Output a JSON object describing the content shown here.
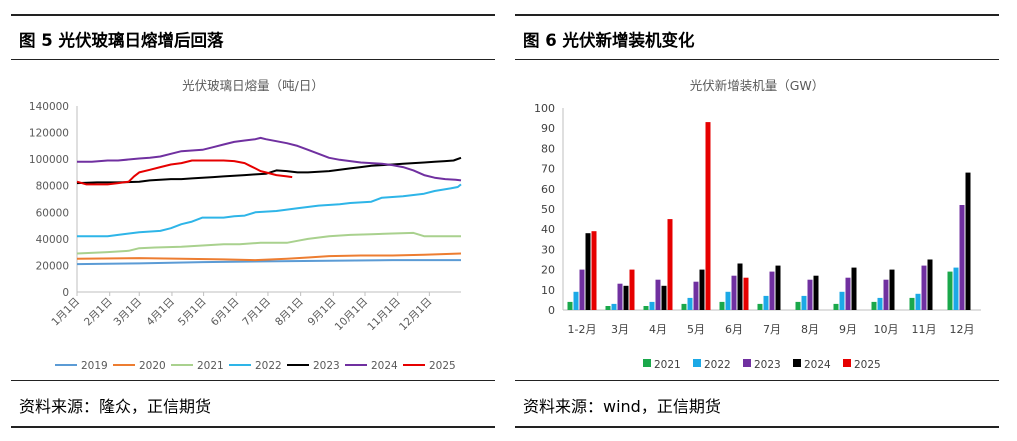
{
  "figures": [
    {
      "title": "图 5  光伏玻璃日熔增后回落",
      "source": "资料来源：隆众，正信期货"
    },
    {
      "title": "图 6    光伏新增装机变化",
      "source": "资料来源：wind，正信期货"
    }
  ],
  "chart_data": [
    {
      "type": "line",
      "title": "光伏玻璃日熔量（吨/日）",
      "ylim": [
        0,
        140000
      ],
      "yticks": [
        "0",
        "20000",
        "40000",
        "60000",
        "80000",
        "100000",
        "120000",
        "140000"
      ],
      "x_tick_labels": [
        "1月1日",
        "2月1日",
        "3月1日",
        "4月1日",
        "5月1日",
        "6月1日",
        "7月1日",
        "8月1日",
        "9月1日",
        "10月1日",
        "11月1日",
        "12月1日"
      ],
      "x_range_days": [
        1,
        365
      ],
      "grid": false,
      "legend_position": "bottom",
      "series": [
        {
          "name": "2019",
          "color": "#5B9BD5",
          "points": [
            [
              1,
              21000
            ],
            [
              60,
              21500
            ],
            [
              120,
              22500
            ],
            [
              180,
              23000
            ],
            [
              240,
              23500
            ],
            [
              300,
              24000
            ],
            [
              365,
              24000
            ]
          ]
        },
        {
          "name": "2020",
          "color": "#ED7D31",
          "points": [
            [
              1,
              25000
            ],
            [
              60,
              25500
            ],
            [
              100,
              25000
            ],
            [
              140,
              24500
            ],
            [
              170,
              24000
            ],
            [
              200,
              25000
            ],
            [
              220,
              26000
            ],
            [
              240,
              27000
            ],
            [
              270,
              27500
            ],
            [
              300,
              27500
            ],
            [
              330,
              28000
            ],
            [
              365,
              29000
            ]
          ]
        },
        {
          "name": "2021",
          "color": "#A9D18E",
          "points": [
            [
              1,
              29000
            ],
            [
              30,
              30000
            ],
            [
              50,
              31000
            ],
            [
              60,
              33000
            ],
            [
              75,
              33500
            ],
            [
              100,
              34000
            ],
            [
              120,
              35000
            ],
            [
              140,
              36000
            ],
            [
              155,
              36000
            ],
            [
              175,
              37000
            ],
            [
              200,
              37000
            ],
            [
              210,
              38500
            ],
            [
              220,
              40000
            ],
            [
              240,
              42000
            ],
            [
              260,
              43000
            ],
            [
              280,
              43500
            ],
            [
              300,
              44000
            ],
            [
              320,
              44500
            ],
            [
              330,
              42000
            ],
            [
              365,
              42000
            ]
          ]
        },
        {
          "name": "2022",
          "color": "#2EB5E8",
          "points": [
            [
              1,
              42000
            ],
            [
              30,
              42000
            ],
            [
              40,
              43000
            ],
            [
              60,
              45000
            ],
            [
              80,
              46000
            ],
            [
              90,
              48000
            ],
            [
              100,
              51000
            ],
            [
              110,
              53000
            ],
            [
              120,
              56000
            ],
            [
              140,
              56000
            ],
            [
              150,
              57000
            ],
            [
              160,
              57500
            ],
            [
              170,
              60000
            ],
            [
              190,
              61000
            ],
            [
              210,
              63000
            ],
            [
              230,
              65000
            ],
            [
              250,
              66000
            ],
            [
              260,
              67000
            ],
            [
              280,
              68000
            ],
            [
              290,
              71000
            ],
            [
              310,
              72000
            ],
            [
              330,
              74000
            ],
            [
              340,
              76000
            ],
            [
              355,
              78000
            ],
            [
              362,
              79000
            ],
            [
              365,
              81000
            ]
          ]
        },
        {
          "name": "2023",
          "color": "#000000",
          "points": [
            [
              1,
              82000
            ],
            [
              20,
              82500
            ],
            [
              40,
              82500
            ],
            [
              60,
              83000
            ],
            [
              70,
              84000
            ],
            [
              80,
              84500
            ],
            [
              90,
              85000
            ],
            [
              100,
              85000
            ],
            [
              110,
              85500
            ],
            [
              120,
              86000
            ],
            [
              130,
              86500
            ],
            [
              140,
              87000
            ],
            [
              150,
              87500
            ],
            [
              160,
              88000
            ],
            [
              170,
              88500
            ],
            [
              180,
              89000
            ],
            [
              190,
              91500
            ],
            [
              200,
              91000
            ],
            [
              210,
              90000
            ],
            [
              220,
              90000
            ],
            [
              230,
              90500
            ],
            [
              240,
              91000
            ],
            [
              250,
              92000
            ],
            [
              260,
              93000
            ],
            [
              270,
              94000
            ],
            [
              280,
              95000
            ],
            [
              290,
              95500
            ],
            [
              300,
              96000
            ],
            [
              310,
              96500
            ],
            [
              320,
              97000
            ],
            [
              330,
              97500
            ],
            [
              340,
              98000
            ],
            [
              350,
              98500
            ],
            [
              358,
              99000
            ],
            [
              365,
              101000
            ]
          ]
        },
        {
          "name": "2024",
          "color": "#7030A0",
          "points": [
            [
              1,
              98000
            ],
            [
              15,
              98000
            ],
            [
              30,
              99000
            ],
            [
              40,
              99000
            ],
            [
              60,
              100500
            ],
            [
              70,
              101000
            ],
            [
              80,
              102000
            ],
            [
              90,
              104000
            ],
            [
              100,
              106000
            ],
            [
              110,
              106500
            ],
            [
              120,
              107000
            ],
            [
              130,
              109000
            ],
            [
              140,
              111000
            ],
            [
              150,
              113000
            ],
            [
              160,
              114000
            ],
            [
              170,
              115000
            ],
            [
              175,
              116000
            ],
            [
              180,
              115000
            ],
            [
              190,
              113500
            ],
            [
              200,
              112000
            ],
            [
              210,
              110000
            ],
            [
              220,
              107000
            ],
            [
              230,
              104000
            ],
            [
              240,
              101000
            ],
            [
              250,
              99500
            ],
            [
              260,
              98500
            ],
            [
              270,
              97500
            ],
            [
              280,
              97000
            ],
            [
              290,
              96500
            ],
            [
              300,
              95500
            ],
            [
              310,
              94000
            ],
            [
              320,
              91500
            ],
            [
              330,
              88000
            ],
            [
              340,
              86000
            ],
            [
              350,
              85000
            ],
            [
              360,
              84500
            ],
            [
              365,
              84000
            ]
          ]
        },
        {
          "name": "2025",
          "color": "#E60000",
          "points": [
            [
              1,
              83000
            ],
            [
              10,
              81000
            ],
            [
              20,
              81000
            ],
            [
              30,
              81000
            ],
            [
              40,
              82000
            ],
            [
              50,
              83000
            ],
            [
              55,
              87000
            ],
            [
              60,
              90000
            ],
            [
              70,
              92000
            ],
            [
              80,
              94000
            ],
            [
              90,
              96000
            ],
            [
              100,
              97000
            ],
            [
              110,
              99000
            ],
            [
              120,
              99000
            ],
            [
              130,
              99000
            ],
            [
              140,
              99000
            ],
            [
              150,
              98500
            ],
            [
              160,
              97000
            ],
            [
              165,
              95000
            ],
            [
              170,
              93000
            ],
            [
              175,
              91000
            ],
            [
              180,
              90000
            ],
            [
              190,
              88000
            ],
            [
              200,
              87000
            ],
            [
              205,
              86500
            ]
          ]
        }
      ]
    },
    {
      "type": "bar",
      "title": "光伏新增装机量（GW）",
      "ylim": [
        0,
        100
      ],
      "yticks": [
        "0",
        "10",
        "20",
        "30",
        "40",
        "50",
        "60",
        "70",
        "80",
        "90",
        "100"
      ],
      "categories": [
        "1-2月",
        "3月",
        "4月",
        "5月",
        "6月",
        "7月",
        "8月",
        "9月",
        "10月",
        "11月",
        "12月"
      ],
      "grid": false,
      "legend_position": "bottom",
      "series": [
        {
          "name": "2021",
          "color": "#1AA84B",
          "values": [
            4,
            2,
            2,
            3,
            4,
            3,
            4,
            3,
            4,
            6,
            19
          ]
        },
        {
          "name": "2022",
          "color": "#1CA9E6",
          "values": [
            9,
            3,
            4,
            6,
            9,
            7,
            7,
            9,
            6,
            8,
            21
          ]
        },
        {
          "name": "2023",
          "color": "#7030A0",
          "values": [
            20,
            13,
            15,
            14,
            17,
            19,
            15,
            16,
            15,
            22,
            52
          ]
        },
        {
          "name": "2024",
          "color": "#000000",
          "values": [
            38,
            12,
            12,
            20,
            23,
            22,
            17,
            21,
            20,
            25,
            68
          ]
        },
        {
          "name": "2025",
          "color": "#E60000",
          "values": [
            39,
            20,
            45,
            93,
            16,
            null,
            null,
            null,
            null,
            null,
            null
          ]
        }
      ]
    }
  ]
}
